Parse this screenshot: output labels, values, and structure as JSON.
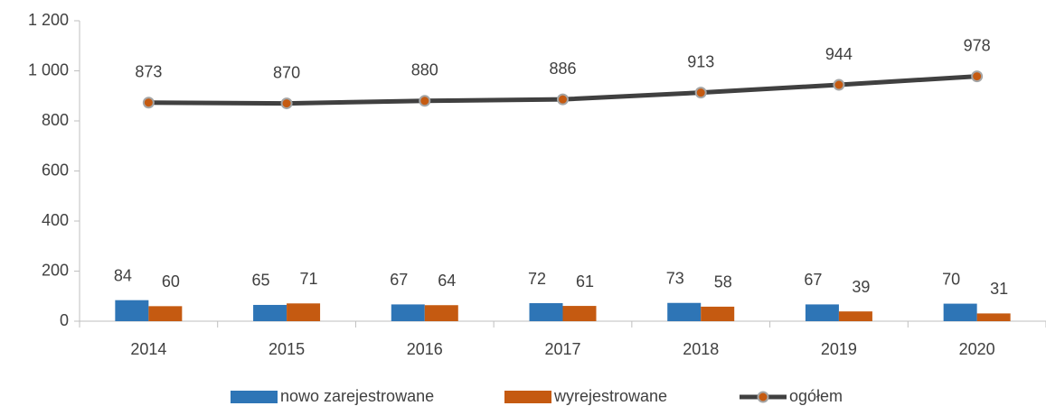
{
  "chart_data": {
    "type": "bar",
    "categories": [
      "2014",
      "2015",
      "2016",
      "2017",
      "2018",
      "2019",
      "2020"
    ],
    "series": [
      {
        "name": "nowo zarejestrowane",
        "type": "bar",
        "color": "#2e75b6",
        "values": [
          84,
          65,
          67,
          72,
          73,
          67,
          70
        ]
      },
      {
        "name": "wyrejestrowane",
        "type": "bar",
        "color": "#c55a11",
        "values": [
          60,
          71,
          64,
          61,
          58,
          39,
          31
        ]
      },
      {
        "name": "ogółem",
        "type": "line",
        "color": "#404040",
        "marker_color": "#c55a11",
        "values": [
          873,
          870,
          880,
          886,
          913,
          944,
          978
        ]
      }
    ],
    "ylim": [
      0,
      1200
    ],
    "yticks": [
      0,
      200,
      400,
      600,
      800,
      {
        "value": 1000,
        "label": "1 000"
      },
      {
        "value": 1200,
        "label": "1 200"
      }
    ],
    "grid": false,
    "legend": "bottom"
  }
}
